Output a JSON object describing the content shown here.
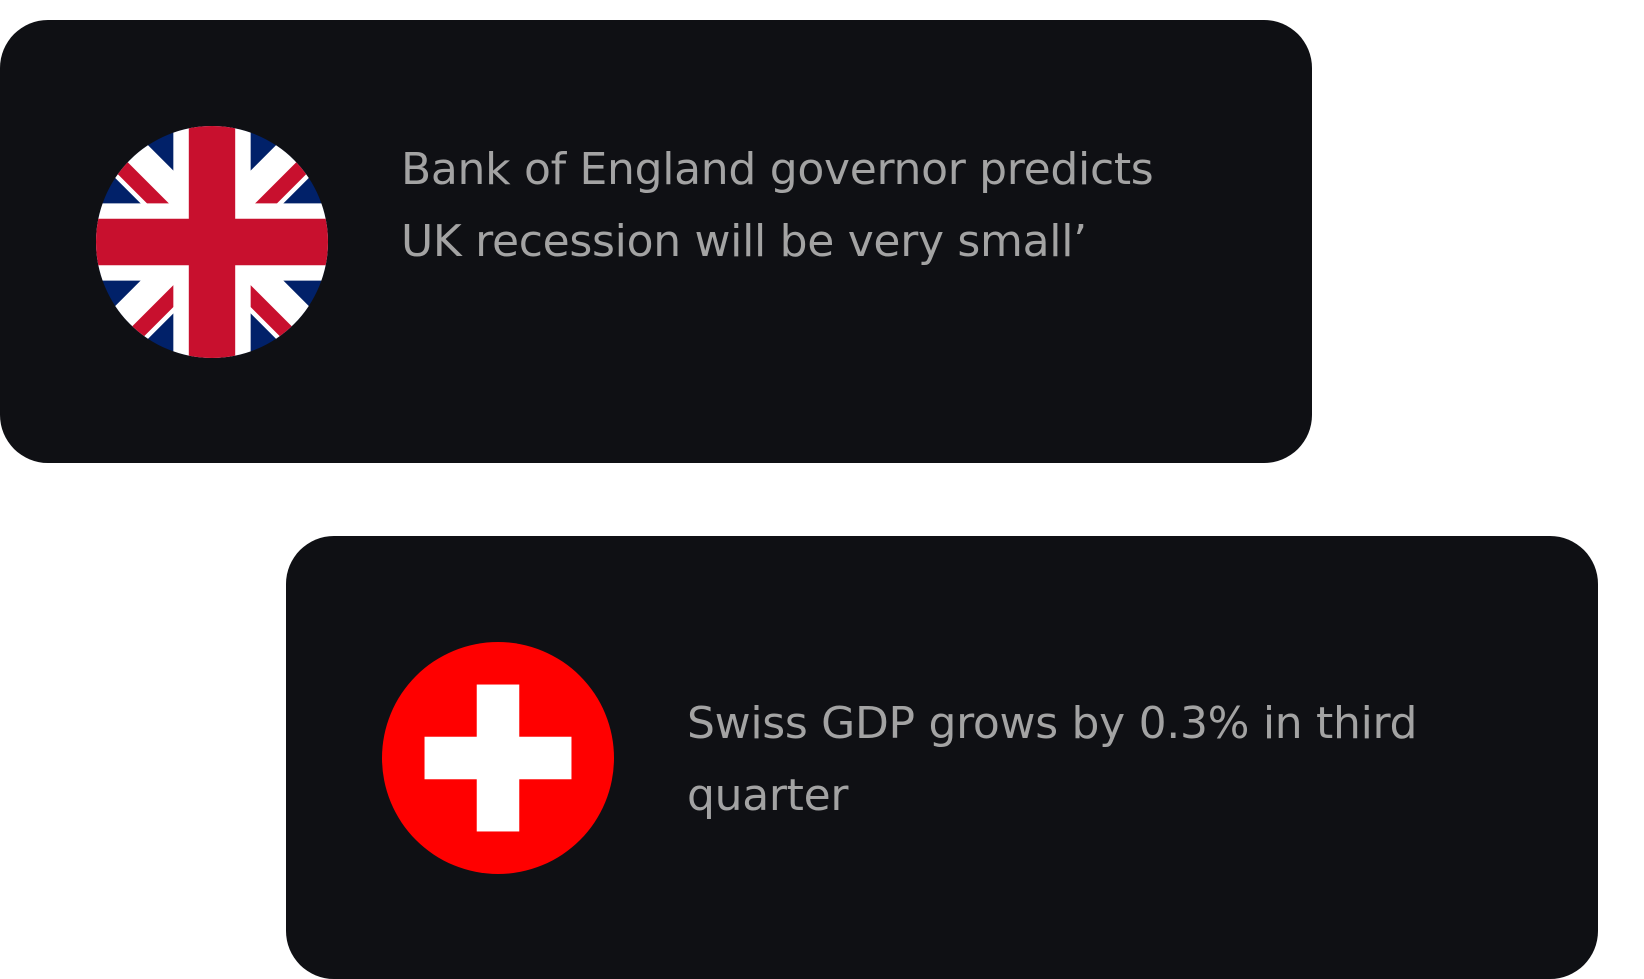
{
  "news": [
    {
      "flag_icon": "uk-flag-icon",
      "headline": "Bank of England governor predicts UK recession will be very small’"
    },
    {
      "flag_icon": "swiss-flag-icon",
      "headline": "Swiss GDP grows by 0.3% in third quarter"
    }
  ],
  "colors": {
    "card_background": "#0f1014",
    "text": "#a3a3a3",
    "page_background": "#ffffff",
    "uk_blue": "#012169",
    "uk_red": "#C8102E",
    "swiss_red": "#FF0000"
  }
}
